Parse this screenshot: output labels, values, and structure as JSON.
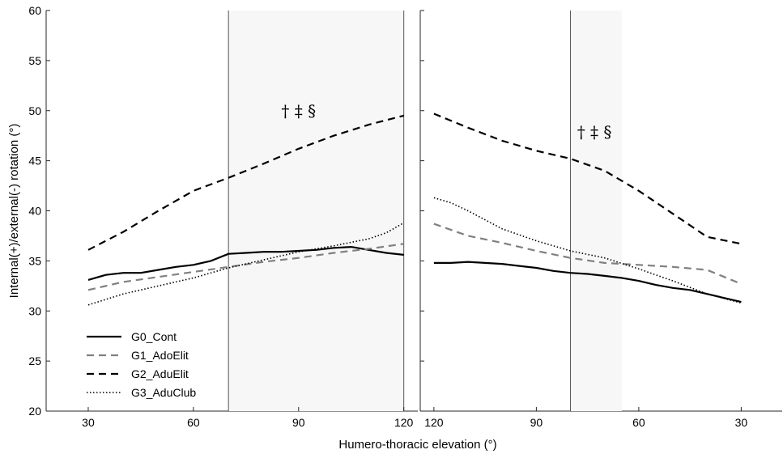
{
  "chart_data": {
    "type": "line",
    "xlabel": "Humero-thoracic elevation (°)",
    "ylabel": "Internal(+)/external(-) rotation (°)",
    "ylim": [
      20,
      60
    ],
    "yticks": [
      20,
      25,
      30,
      35,
      40,
      45,
      50,
      55,
      60
    ],
    "grid": false,
    "legend": "bottom-left",
    "panels": [
      {
        "phase": "elevation",
        "xlim": [
          18,
          124
        ],
        "xticks": [
          30,
          60,
          90,
          120
        ],
        "shaded_range": [
          70,
          120
        ],
        "vertical_lines": [
          70,
          120
        ],
        "annotation": "† ‡ §",
        "annotation_pos": {
          "x": 90,
          "y": 49.4
        }
      },
      {
        "phase": "lowering",
        "xlim_reversed": [
          124,
          18
        ],
        "xticks": [
          120,
          90,
          60,
          30
        ],
        "shaded_range": [
          65,
          80
        ],
        "vertical_lines": [
          80
        ],
        "annotation": "† ‡ §",
        "annotation_pos": {
          "x": 73,
          "y": 47.3
        }
      }
    ],
    "series": [
      {
        "name": "G0_Cont",
        "color": "#000000",
        "dash": "solid",
        "elevation": {
          "x": [
            30,
            35,
            40,
            45,
            50,
            55,
            60,
            65,
            70,
            75,
            80,
            85,
            90,
            95,
            100,
            105,
            110,
            115,
            120
          ],
          "y": [
            33.1,
            33.6,
            33.8,
            33.8,
            34.1,
            34.4,
            34.6,
            35.0,
            35.7,
            35.8,
            35.9,
            35.9,
            36.0,
            36.1,
            36.3,
            36.4,
            36.1,
            35.8,
            35.6
          ]
        },
        "lowering": {
          "x": [
            120,
            115,
            110,
            105,
            100,
            95,
            90,
            85,
            80,
            75,
            70,
            65,
            60,
            55,
            50,
            45,
            40,
            35,
            30
          ],
          "y": [
            34.8,
            34.8,
            34.9,
            34.8,
            34.7,
            34.5,
            34.3,
            34.0,
            33.8,
            33.7,
            33.5,
            33.3,
            33.0,
            32.6,
            32.3,
            32.1,
            31.7,
            31.3,
            30.9
          ]
        }
      },
      {
        "name": "G1_AdoElit",
        "color": "#808080",
        "dash": "dashed",
        "elevation": {
          "x": [
            30,
            40,
            50,
            60,
            70,
            80,
            90,
            100,
            110,
            120
          ],
          "y": [
            32.1,
            32.9,
            33.4,
            33.9,
            34.4,
            34.9,
            35.3,
            35.8,
            36.2,
            36.7
          ]
        },
        "lowering": {
          "x": [
            120,
            110,
            100,
            90,
            80,
            70,
            60,
            50,
            40,
            30
          ],
          "y": [
            38.7,
            37.5,
            36.8,
            36.0,
            35.3,
            34.8,
            34.6,
            34.4,
            34.1,
            32.7
          ]
        }
      },
      {
        "name": "G2_AduElit",
        "color": "#000000",
        "dash": "dashed",
        "elevation": {
          "x": [
            30,
            40,
            50,
            60,
            70,
            80,
            90,
            100,
            110,
            120
          ],
          "y": [
            36.1,
            37.9,
            40.0,
            42.0,
            43.3,
            44.7,
            46.2,
            47.5,
            48.6,
            49.5
          ]
        },
        "lowering": {
          "x": [
            120,
            110,
            100,
            90,
            80,
            70,
            60,
            50,
            40,
            30
          ],
          "y": [
            49.7,
            48.3,
            47.0,
            46.0,
            45.2,
            44.0,
            42.0,
            39.7,
            37.4,
            36.7
          ]
        }
      },
      {
        "name": "G3_AduClub",
        "color": "#000000",
        "dash": "dotted",
        "elevation": {
          "x": [
            30,
            40,
            50,
            60,
            70,
            80,
            90,
            100,
            110,
            115,
            120
          ],
          "y": [
            30.6,
            31.7,
            32.5,
            33.3,
            34.3,
            35.1,
            35.9,
            36.5,
            37.2,
            37.8,
            38.8
          ]
        },
        "lowering": {
          "x": [
            120,
            115,
            110,
            100,
            90,
            80,
            70,
            60,
            50,
            40,
            30
          ],
          "y": [
            41.3,
            40.8,
            40.0,
            38.2,
            37.0,
            36.0,
            35.3,
            34.2,
            33.0,
            31.7,
            30.8
          ]
        }
      }
    ]
  }
}
